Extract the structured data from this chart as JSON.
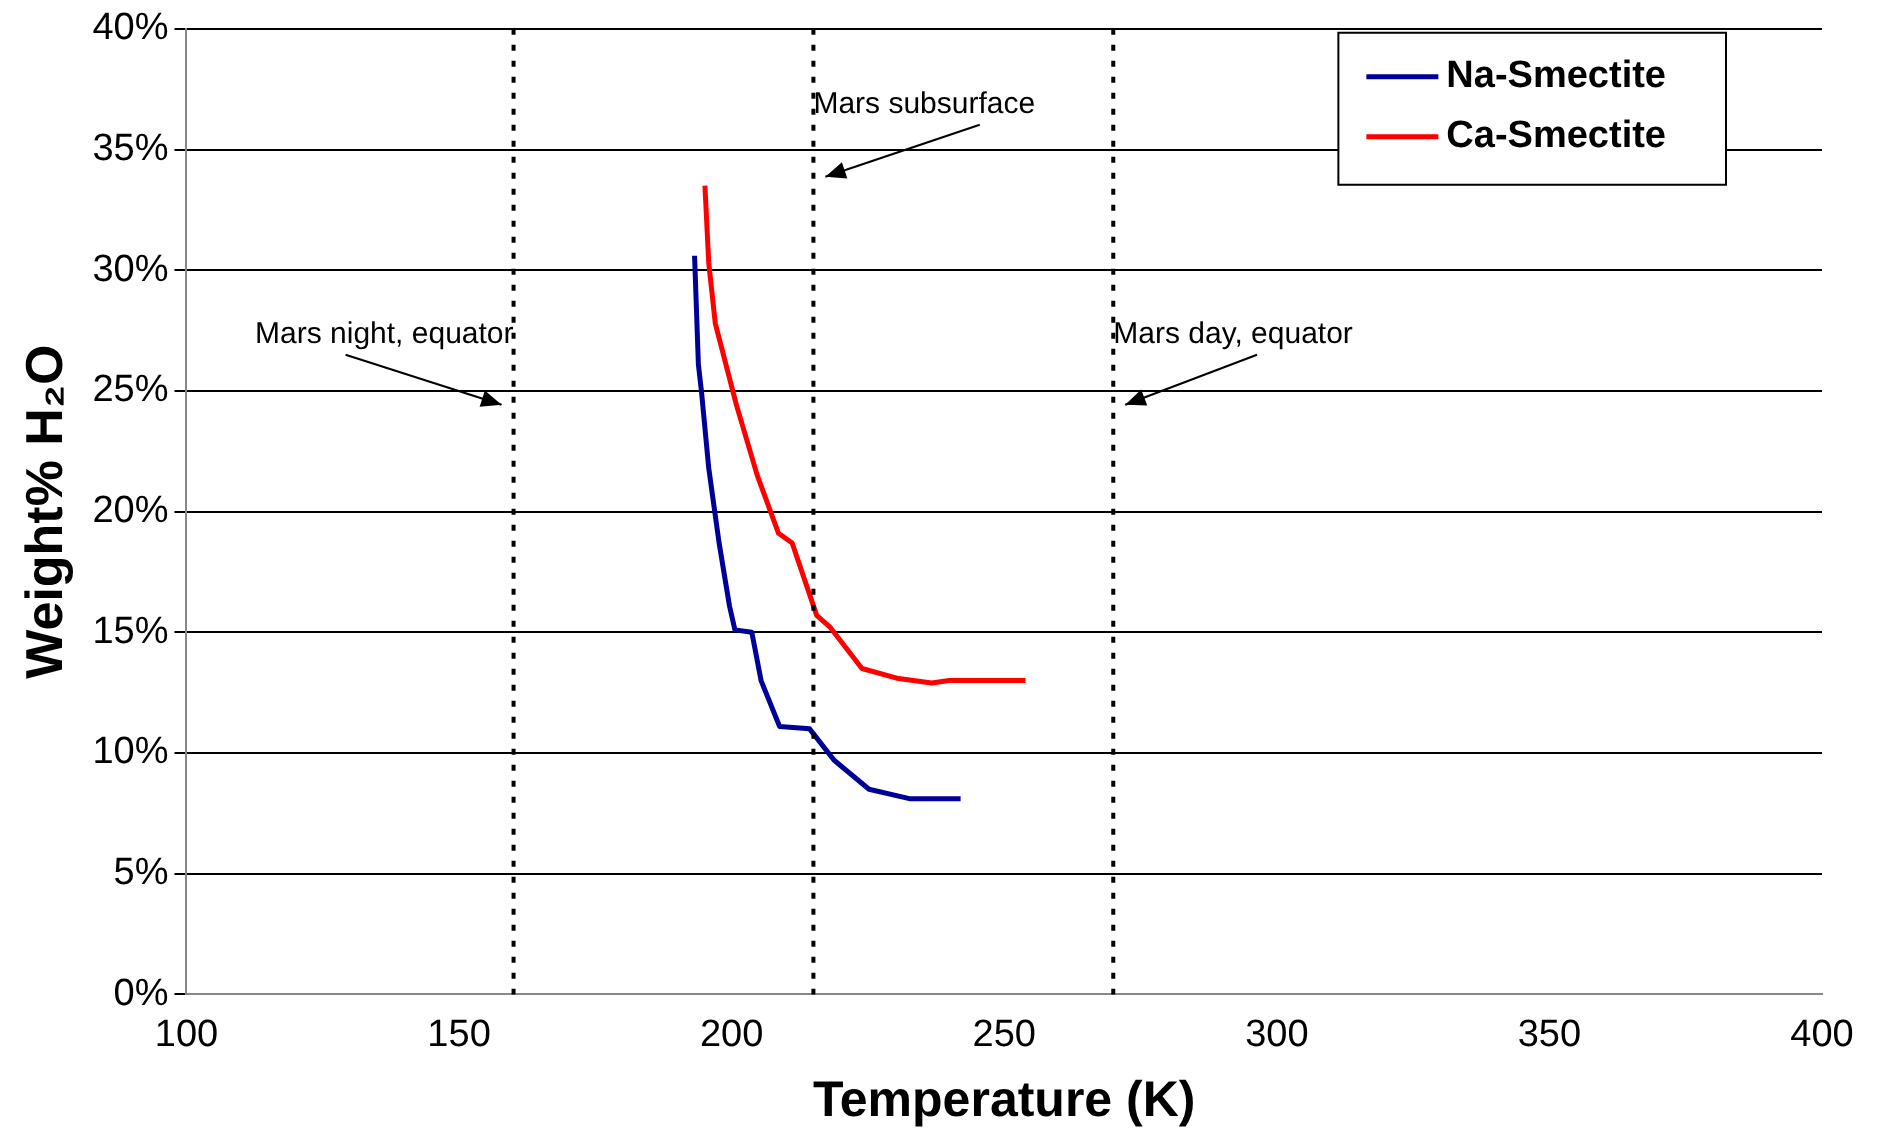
{
  "chart_data": {
    "type": "line",
    "xlabel": "Temperature (K)",
    "ylabel": "Weight% H₂O",
    "xlim": [
      100,
      400
    ],
    "xticks": [
      100,
      150,
      200,
      250,
      300,
      350,
      400
    ],
    "ylim": [
      0,
      40
    ],
    "yticks": [
      {
        "value": 0,
        "label": "0%"
      },
      {
        "value": 5,
        "label": "5%"
      },
      {
        "value": 10,
        "label": "10%"
      },
      {
        "value": 15,
        "label": "15%"
      },
      {
        "value": 20,
        "label": "20%"
      },
      {
        "value": 25,
        "label": "25%"
      },
      {
        "value": 30,
        "label": "30%"
      },
      {
        "value": 35,
        "label": "35%"
      },
      {
        "value": 40,
        "label": "40%"
      }
    ],
    "grid": "y",
    "legend": "top right",
    "marker": "none",
    "line_style": "solid",
    "series": [
      {
        "name": "Na-Smectite",
        "color": "#000099",
        "x": [
          193.2,
          193.9,
          194.5,
          195.8,
          197.7,
          199.6,
          200.6,
          203.7,
          205.4,
          208.8,
          214.3,
          218.8,
          225.2,
          232.8,
          242
        ],
        "values": [
          30.6,
          26.1,
          24.9,
          21.8,
          18.7,
          16.1,
          15.1,
          15,
          13,
          11.1,
          11,
          9.7,
          8.5,
          8.1,
          8.1
        ]
      },
      {
        "name": "Ca-Smectite",
        "color": "#ff0000",
        "x": [
          195.1,
          195.8,
          197,
          200.9,
          204.7,
          208.6,
          211.1,
          215.6,
          218.1,
          223.9,
          230.3,
          236.7,
          239.9,
          253.9
        ],
        "values": [
          33.5,
          30.3,
          27.8,
          24.4,
          21.5,
          19.1,
          18.7,
          15.7,
          15.2,
          13.5,
          13.1,
          12.9,
          13,
          13
        ]
      }
    ],
    "ref_lines": [
      {
        "axis": "x",
        "value": 160,
        "label": "Mars night, equator",
        "color": "#000000",
        "line_style": "dotted"
      },
      {
        "axis": "x",
        "value": 215,
        "label": "Mars subsurface",
        "color": "#000000",
        "line_style": "dotted"
      },
      {
        "axis": "x",
        "value": 270,
        "label": "Mars day, equator",
        "color": "#000000",
        "line_style": "dotted"
      }
    ]
  }
}
